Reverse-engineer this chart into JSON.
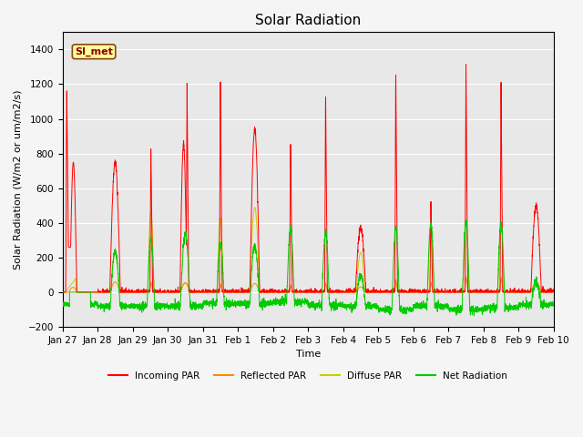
{
  "title": "Solar Radiation",
  "xlabel": "Time",
  "ylabel": "Solar Radiation (W/m2 or um/m2/s)",
  "ylim": [
    -200,
    1500
  ],
  "yticks": [
    -200,
    0,
    200,
    400,
    600,
    800,
    1000,
    1200,
    1400
  ],
  "plot_bg": "#e8e8e8",
  "fig_bg": "#f5f5f5",
  "grid_color": "#ffffff",
  "annotation_text": "SI_met",
  "annotation_bg": "#ffff99",
  "annotation_border": "#8b4513",
  "x_tick_labels": [
    "Jan 27",
    "Jan 28",
    "Jan 29",
    "Jan 30",
    "Jan 31",
    "Feb 1",
    "Feb 2",
    "Feb 3",
    "Feb 4",
    "Feb 5",
    "Feb 6",
    "Feb 7",
    "Feb 8",
    "Feb 9",
    "Feb 10"
  ],
  "legend_entries": [
    "Incoming PAR",
    "Reflected PAR",
    "Diffuse PAR",
    "Net Radiation"
  ],
  "line_colors": [
    "#ff0000",
    "#ff8800",
    "#cccc00",
    "#00cc00"
  ],
  "n_days": 14,
  "ppd": 288,
  "title_fontsize": 11,
  "axis_fontsize": 8,
  "tick_fontsize": 7.5
}
